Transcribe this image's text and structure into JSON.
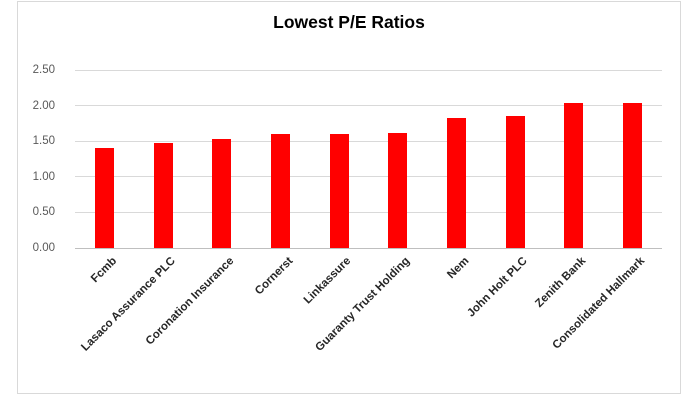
{
  "chart_data": {
    "type": "bar",
    "title": "Lowest P/E Ratios",
    "categories": [
      "Fcmb",
      "Lasaco Assurance PLC",
      "Coronation Insurance",
      "Cornerst",
      "Linkassure",
      "Guaranty Trust Holding",
      "Nem",
      "John Holt PLC",
      "Zenith Bank",
      "Consolidated Hallmark"
    ],
    "values": [
      1.4,
      1.48,
      1.53,
      1.6,
      1.6,
      1.62,
      1.83,
      1.85,
      2.04,
      2.04
    ],
    "xlabel": "",
    "ylabel": "",
    "ylim": [
      0,
      2.5
    ],
    "y_ticks": [
      "0.00",
      "0.50",
      "1.00",
      "1.50",
      "2.00",
      "2.50"
    ],
    "grid": true,
    "legend": false,
    "bar_color": "#ff0000",
    "gridline_color": "#d9d9d9",
    "axis_line_color": "#bfbfbf",
    "tick_label_color": "#595959",
    "category_label_color": "#262626",
    "title_color": "#000000"
  }
}
